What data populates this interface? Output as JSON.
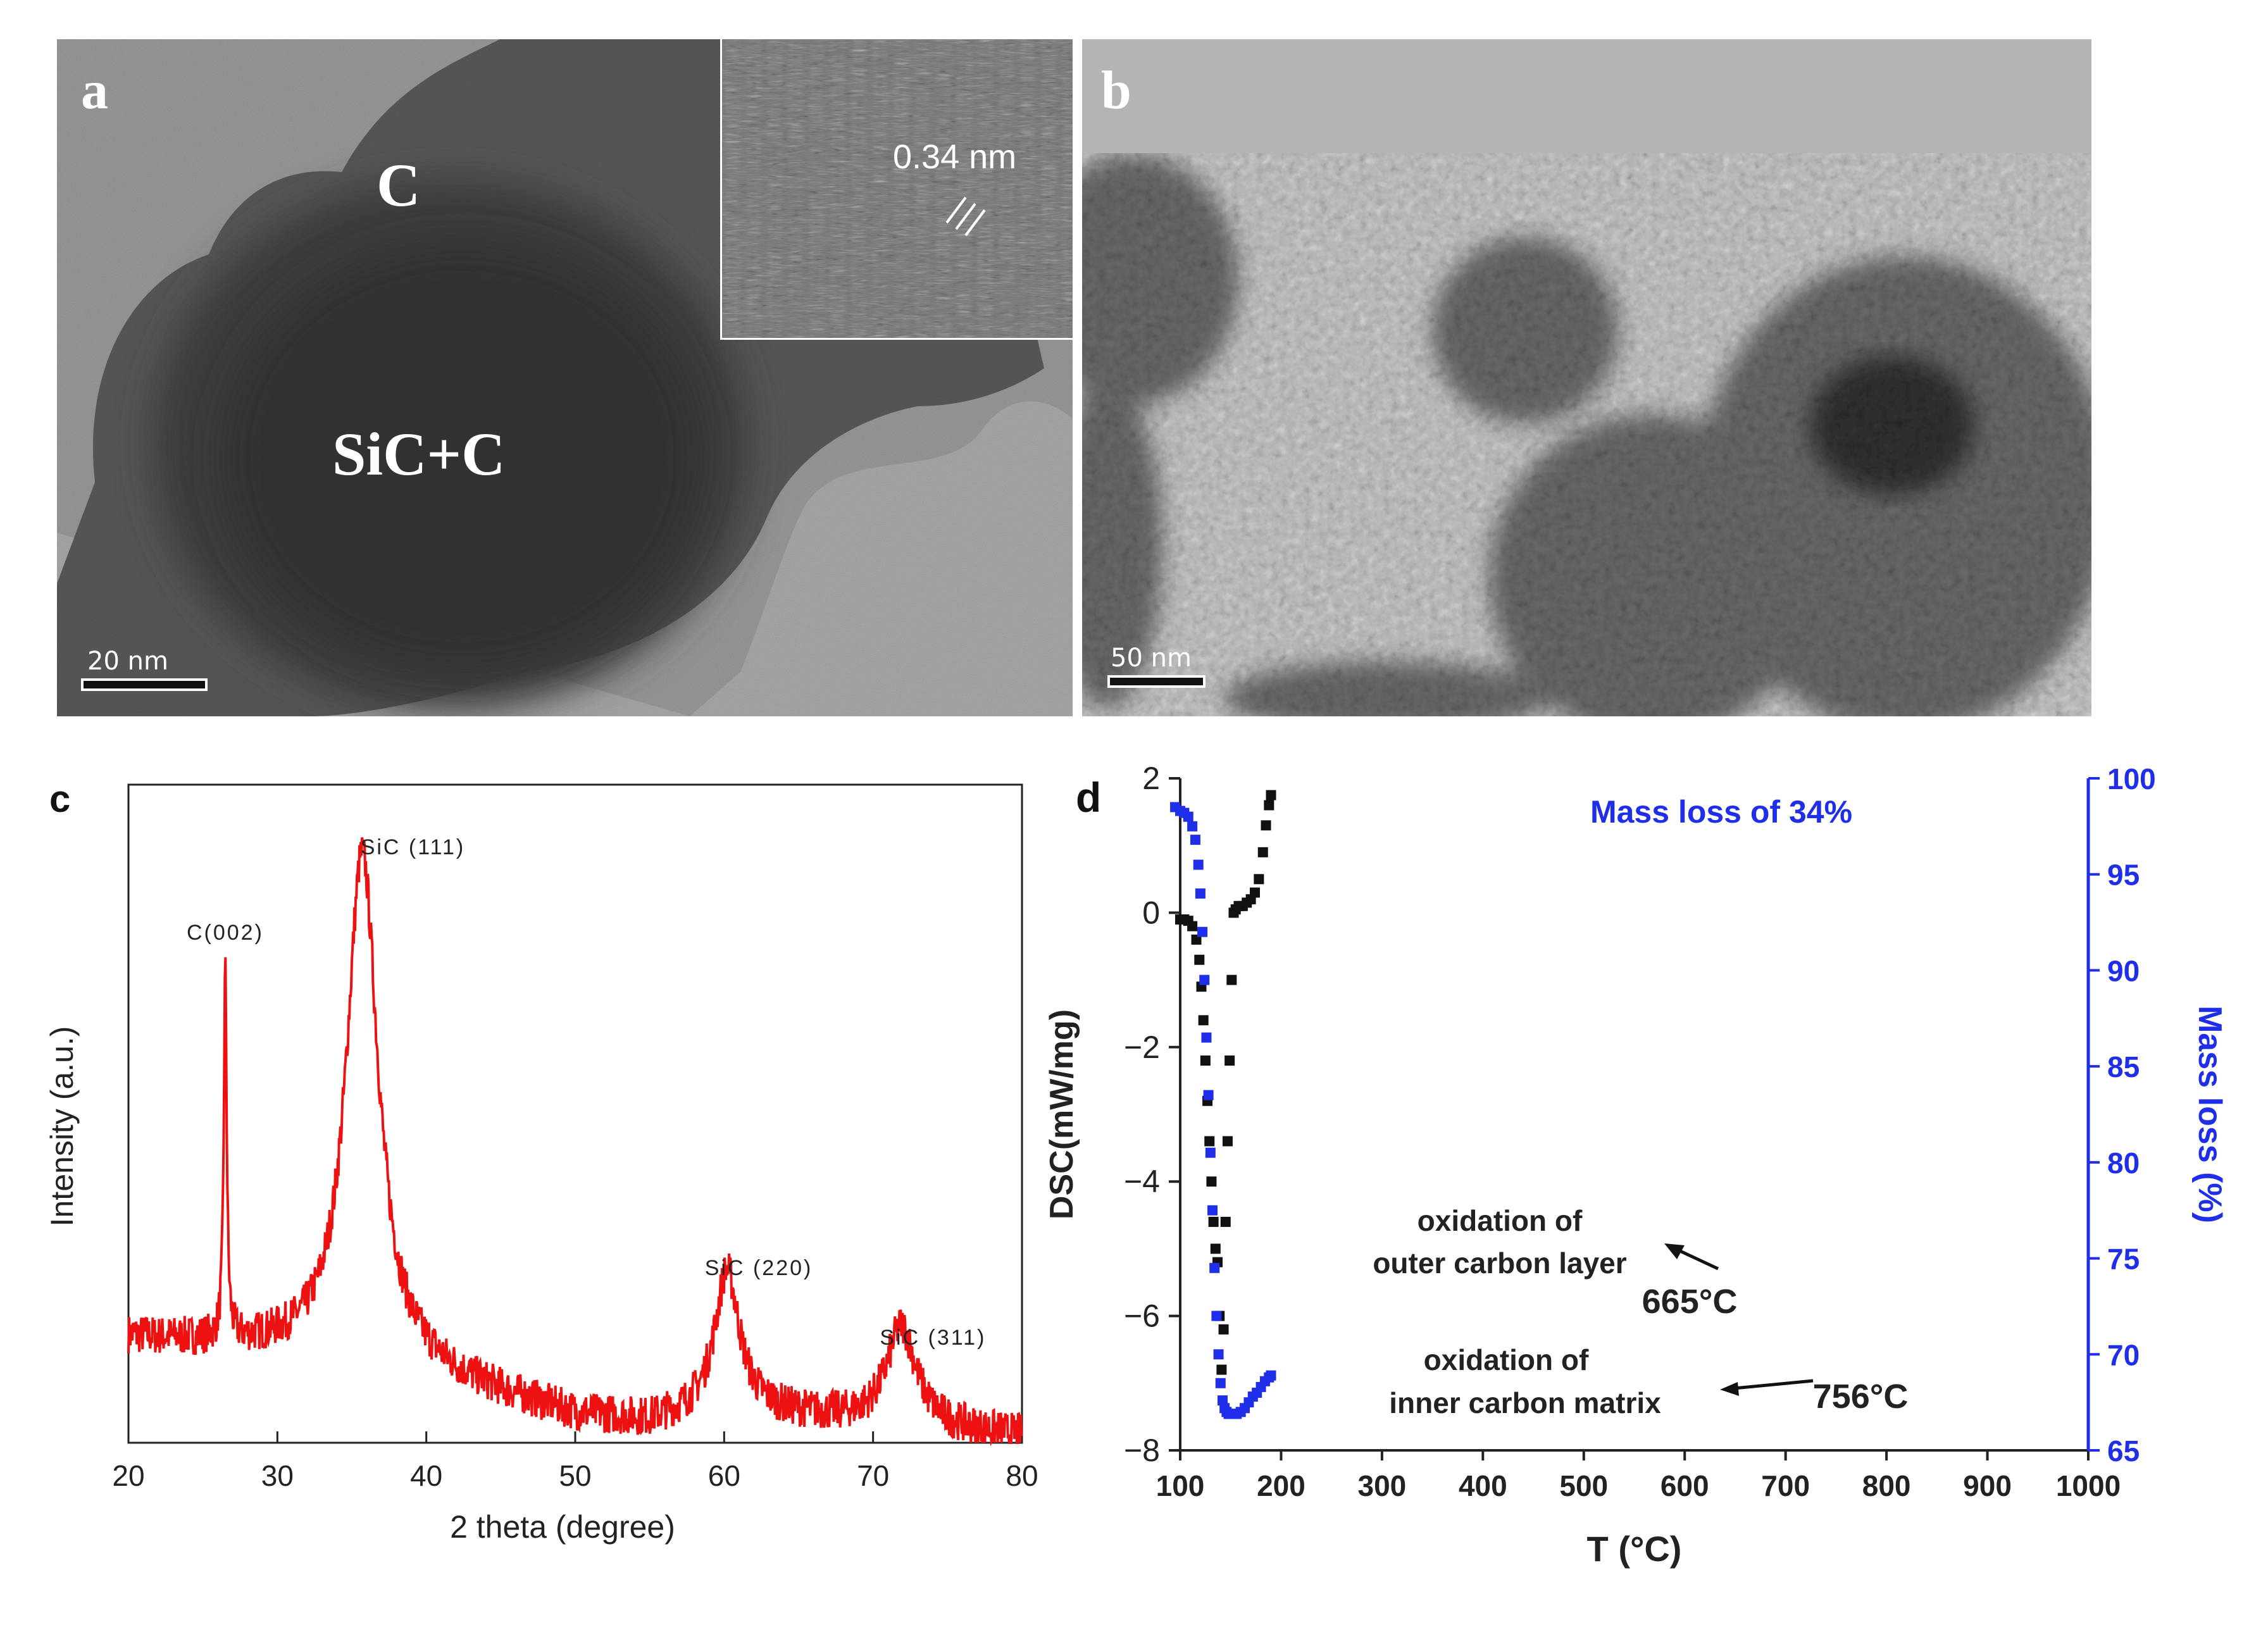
{
  "panel_a": {
    "letter": "a",
    "label_c": "C",
    "label_core": "SiC+C",
    "inset_label": "0.34 nm",
    "scale": "20 nm"
  },
  "panel_b": {
    "letter": "b",
    "scale": "50 nm"
  },
  "chart_data": [
    {
      "panel": "c",
      "type": "line",
      "xlabel": "2 theta (degree)",
      "ylabel": "Intensity (a.u.)",
      "xlim": [
        20,
        80
      ],
      "xticks": [
        "20",
        "30",
        "40",
        "50",
        "60",
        "70",
        "80"
      ],
      "color": "#ee1111",
      "annotations": [
        {
          "text": "C(002)",
          "x": 26.5
        },
        {
          "text": "SiC (111)",
          "x": 35.7
        },
        {
          "text": "SiC (220)",
          "x": 60.2
        },
        {
          "text": "SiC (311)",
          "x": 71.9
        }
      ],
      "profile": {
        "baseline": [
          [
            20,
            0.16
          ],
          [
            30,
            0.14
          ],
          [
            40,
            0.1
          ],
          [
            50,
            0.04
          ],
          [
            55,
            0.03
          ],
          [
            60,
            0.05
          ],
          [
            70,
            0.03
          ],
          [
            80,
            0.01
          ]
        ],
        "peaks": [
          {
            "center": 26.5,
            "height": 0.56,
            "width": 0.12
          },
          {
            "center": 35.7,
            "height": 0.78,
            "width": 1.3
          },
          {
            "center": 60.2,
            "height": 0.21,
            "width": 1.0
          },
          {
            "center": 71.9,
            "height": 0.15,
            "width": 1.2
          }
        ],
        "noise": 0.03
      }
    },
    {
      "panel": "d",
      "type": "scatter",
      "xlabel": "T (°C)",
      "ylabel_left": "DSC(mW/mg)",
      "ylabel_right": "Mass loss (%)",
      "xlim": [
        100,
        1000
      ],
      "ylim_left": [
        -8,
        2
      ],
      "ylim_right": [
        65,
        100
      ],
      "xticks": [
        "100",
        "200",
        "300",
        "400",
        "500",
        "600",
        "700",
        "800",
        "900",
        "1000"
      ],
      "yticks_left": [
        "2",
        "0",
        "−2",
        "−4",
        "−6",
        "−8"
      ],
      "yticks_right": [
        "100",
        "95",
        "90",
        "85",
        "80",
        "75",
        "70",
        "65"
      ],
      "title": "Mass loss of 34%",
      "annotations": [
        {
          "text": "oxidation of",
          "line2": "outer carbon layer",
          "temp": "665°C"
        },
        {
          "text": "oxidation of",
          "line2": "inner carbon matrix",
          "temp": "756°C"
        }
      ],
      "series": [
        {
          "axis": "left",
          "color": "#111111",
          "marker": "square",
          "x": [
            100,
            104,
            108,
            112,
            116,
            119,
            121,
            123,
            125,
            127,
            129,
            131,
            133,
            135,
            137,
            139,
            141,
            143,
            145,
            147,
            149,
            151,
            153,
            155,
            158,
            162,
            166,
            170,
            174,
            178,
            182,
            185,
            188,
            190
          ],
          "y": [
            -0.1,
            -0.1,
            -0.12,
            -0.2,
            -0.4,
            -0.7,
            -1.1,
            -1.6,
            -2.2,
            -2.8,
            -3.4,
            -4.0,
            -4.6,
            -5.0,
            -5.2,
            -6.0,
            -6.8,
            -6.2,
            -4.6,
            -3.4,
            -2.2,
            -1.0,
            0.0,
            0.05,
            0.1,
            0.1,
            0.15,
            0.2,
            0.3,
            0.5,
            0.9,
            1.3,
            1.6,
            1.75
          ]
        },
        {
          "axis": "right",
          "color": "#1f2ee8",
          "marker": "square",
          "x": [
            95,
            100,
            104,
            108,
            112,
            115,
            118,
            120,
            122,
            124,
            126,
            128,
            130,
            132,
            134,
            136,
            138,
            140,
            142,
            144,
            146,
            148,
            150,
            153,
            156,
            160,
            164,
            168,
            172,
            176,
            180,
            184,
            188,
            190
          ],
          "y": [
            98.5,
            98.3,
            98.2,
            98.0,
            97.5,
            96.8,
            95.5,
            94.0,
            92.0,
            89.5,
            86.5,
            83.5,
            80.5,
            77.5,
            74.5,
            72.0,
            70.0,
            68.5,
            67.6,
            67.2,
            67.0,
            66.9,
            66.9,
            66.9,
            66.9,
            67.0,
            67.2,
            67.5,
            67.8,
            68.0,
            68.3,
            68.6,
            68.8,
            68.9
          ]
        }
      ]
    }
  ]
}
